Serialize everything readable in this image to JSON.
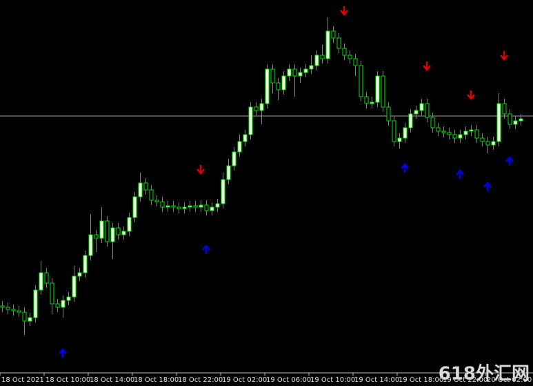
{
  "chart_data": {
    "type": "candlestick",
    "open": [
      97,
      95,
      92,
      90,
      88,
      75,
      80,
      120,
      145,
      130,
      100,
      95,
      105,
      110,
      140,
      145,
      170,
      200,
      195,
      220,
      190,
      210,
      200,
      205,
      225,
      255,
      275,
      265,
      250,
      248,
      240,
      242,
      240,
      238,
      240,
      242,
      240,
      243,
      235,
      240,
      245,
      280,
      300,
      320,
      335,
      345,
      385,
      380,
      390,
      440,
      420,
      410,
      430,
      440,
      430,
      435,
      440,
      445,
      460,
      455,
      495,
      485,
      470,
      460,
      455,
      445,
      400,
      390,
      392,
      430,
      385,
      365,
      335,
      340,
      355,
      375,
      380,
      390,
      370,
      355,
      350,
      348,
      345,
      340,
      345,
      350,
      352,
      340,
      335,
      330,
      335,
      390,
      375,
      360,
      365
    ],
    "high": [
      104,
      102,
      99,
      97,
      95,
      87,
      127,
      162,
      152,
      137,
      107,
      112,
      117,
      155,
      152,
      177,
      230,
      207,
      240,
      227,
      217,
      217,
      212,
      232,
      262,
      290,
      282,
      272,
      257,
      255,
      249,
      249,
      247,
      247,
      249,
      249,
      250,
      250,
      247,
      252,
      290,
      310,
      327,
      345,
      352,
      392,
      392,
      397,
      447,
      447,
      427,
      437,
      447,
      447,
      442,
      447,
      460,
      467,
      475,
      515,
      502,
      492,
      477,
      467,
      462,
      452,
      407,
      400,
      437,
      437,
      392,
      372,
      347,
      362,
      382,
      387,
      397,
      397,
      377,
      362,
      357,
      355,
      352,
      352,
      357,
      359,
      359,
      347,
      342,
      342,
      405,
      397,
      382,
      372,
      375
    ],
    "low": [
      88,
      85,
      83,
      81,
      55,
      68,
      73,
      113,
      123,
      85,
      88,
      80,
      98,
      103,
      133,
      138,
      163,
      175,
      188,
      183,
      165,
      193,
      193,
      198,
      218,
      248,
      258,
      243,
      241,
      233,
      233,
      233,
      231,
      231,
      233,
      233,
      233,
      228,
      228,
      233,
      238,
      273,
      293,
      313,
      328,
      338,
      373,
      360,
      383,
      405,
      395,
      403,
      423,
      400,
      420,
      428,
      433,
      438,
      448,
      448,
      478,
      463,
      453,
      448,
      430,
      393,
      383,
      383,
      385,
      378,
      358,
      328,
      325,
      333,
      348,
      368,
      373,
      363,
      348,
      343,
      341,
      338,
      333,
      333,
      338,
      343,
      333,
      328,
      318,
      323,
      328,
      368,
      353,
      353,
      358
    ],
    "close": [
      95,
      92,
      90,
      88,
      75,
      80,
      120,
      145,
      130,
      100,
      95,
      105,
      110,
      140,
      145,
      170,
      200,
      195,
      220,
      190,
      210,
      200,
      205,
      225,
      255,
      275,
      265,
      250,
      248,
      240,
      242,
      240,
      238,
      240,
      242,
      240,
      243,
      235,
      240,
      245,
      280,
      300,
      320,
      335,
      345,
      385,
      380,
      390,
      440,
      420,
      410,
      430,
      440,
      430,
      435,
      440,
      445,
      460,
      455,
      495,
      485,
      470,
      460,
      455,
      445,
      400,
      390,
      392,
      430,
      385,
      365,
      335,
      340,
      355,
      375,
      380,
      390,
      370,
      355,
      350,
      348,
      345,
      340,
      345,
      350,
      352,
      340,
      335,
      330,
      335,
      390,
      375,
      360,
      365,
      368
    ],
    "ylim": [
      0,
      540
    ],
    "xticks": [
      {
        "value": 0,
        "label": "18 Oct 2021"
      },
      {
        "value": 8,
        "label": "18 Oct 10:00"
      },
      {
        "value": 16,
        "label": "18 Oct 14:00"
      },
      {
        "value": 24,
        "label": "18 Oct 18:00"
      },
      {
        "value": 32,
        "label": "18 Oct 22:00"
      },
      {
        "value": 40,
        "label": "19 Oct 02:00"
      },
      {
        "value": 48,
        "label": "19 Oct 06:00"
      },
      {
        "value": 56,
        "label": "19 Oct 10:00"
      },
      {
        "value": 64,
        "label": "19 Oct 14:00"
      },
      {
        "value": 72,
        "label": "19 Oct 18:00"
      },
      {
        "value": 80,
        "label": "19 Oct 22:00"
      },
      {
        "value": 88,
        "label": "20 Oct 02:00"
      }
    ],
    "price_line": 372,
    "sell_signals": {
      "color": "#e00000",
      "x": [
        36,
        62,
        77,
        85,
        91
      ],
      "values": [
        295,
        525,
        445,
        403,
        460
      ]
    },
    "buy_signals": {
      "color": "#0000ee",
      "x": [
        11,
        37,
        73,
        83,
        88,
        92
      ],
      "values": [
        28,
        178,
        296,
        287,
        269,
        306
      ]
    },
    "watermark": "618外汇网"
  }
}
